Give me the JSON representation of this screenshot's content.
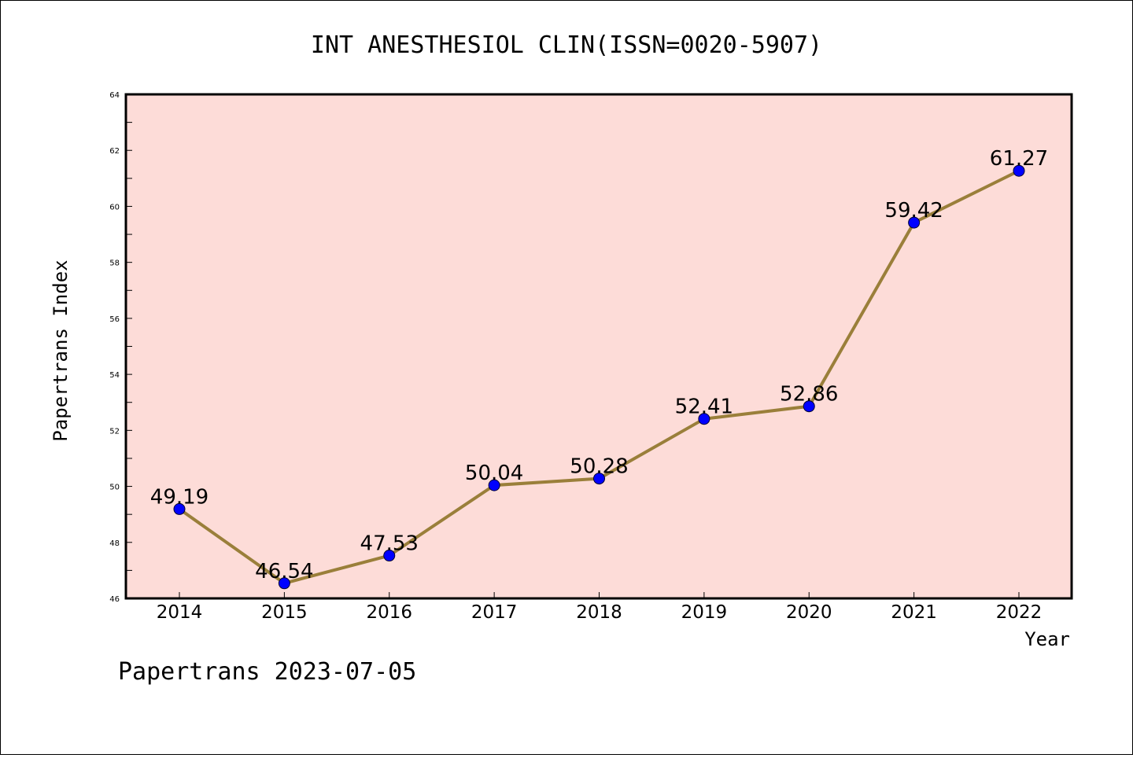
{
  "chart_data": {
    "type": "line",
    "title": "INT ANESTHESIOL CLIN(ISSN=0020-5907)",
    "xlabel": "Year",
    "ylabel": "Papertrans Index",
    "categories": [
      "2014",
      "2015",
      "2016",
      "2017",
      "2018",
      "2019",
      "2020",
      "2021",
      "2022"
    ],
    "values": [
      49.19,
      46.54,
      47.53,
      50.04,
      50.28,
      52.41,
      52.86,
      59.42,
      61.27
    ],
    "data_labels": [
      "49.19",
      "46.54",
      "47.53",
      "50.04",
      "50.28",
      "52.41",
      "52.86",
      "59.42",
      "61.27"
    ],
    "ylim": [
      46,
      64
    ],
    "yticks": [
      "46",
      "48",
      "50",
      "52",
      "54",
      "56",
      "58",
      "60",
      "62",
      "64"
    ],
    "grid": false,
    "legend": "none"
  },
  "footer": "Papertrans 2023-07-05",
  "colors": {
    "plot_background": "#fddcd8",
    "line": "#9a7f3a",
    "marker": "#0000ff"
  }
}
